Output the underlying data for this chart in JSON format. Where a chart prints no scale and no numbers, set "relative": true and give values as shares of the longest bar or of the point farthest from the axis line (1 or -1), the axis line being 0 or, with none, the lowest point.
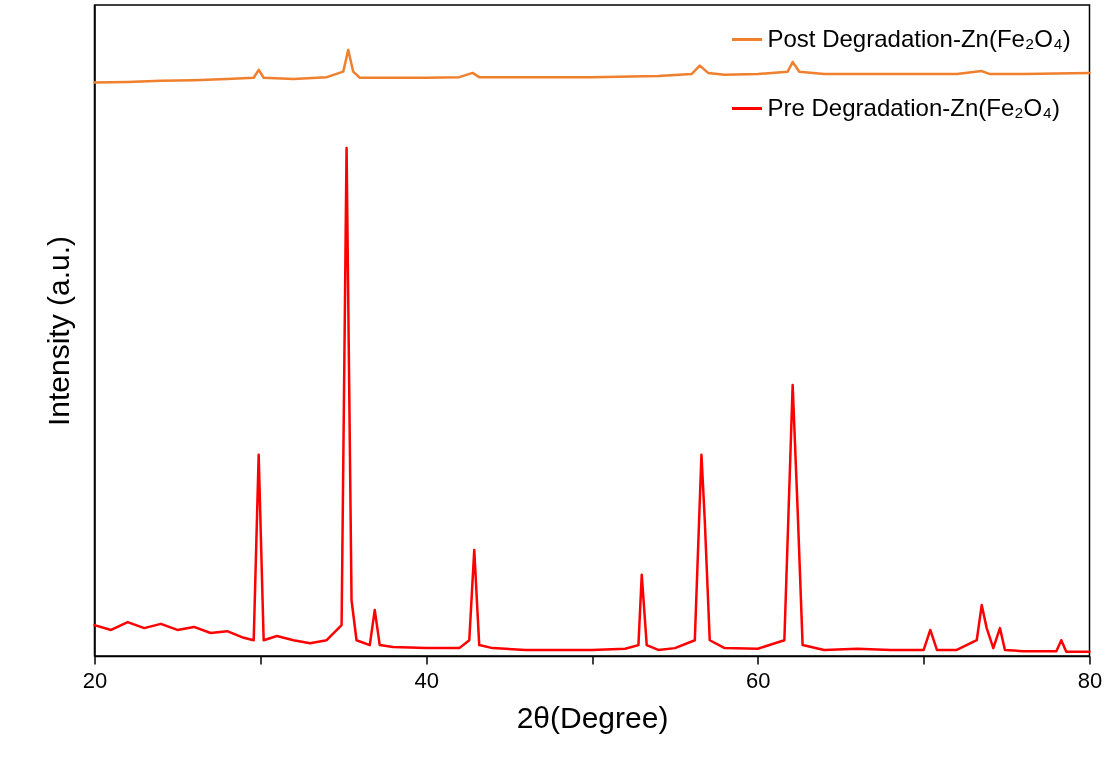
{
  "chart_data": {
    "type": "line",
    "relative": true,
    "xlabel": "2θ(Degree)",
    "ylabel": "Intensity (a.u.)",
    "xlim": [
      20,
      80
    ],
    "xticks": [
      20,
      {
        "value": 30,
        "label": null
      },
      40,
      {
        "value": 50,
        "label": null
      },
      60,
      {
        "value": 70,
        "label": null
      },
      80
    ],
    "legend": "top right",
    "grid": false,
    "marker": "none",
    "line_style": "solid",
    "series": [
      {
        "name": "Post Degradation-Zn(Fe₂O₄)",
        "color": "#f07f2e",
        "x": [
          20,
          22,
          24,
          26,
          28,
          29.6,
          29.9,
          30.2,
          32,
          34,
          35,
          35.3,
          35.6,
          36,
          38,
          40,
          42,
          42.8,
          43.2,
          46,
          50,
          54,
          56,
          56.5,
          57,
          58,
          60,
          61.8,
          62.1,
          62.5,
          64,
          68,
          72,
          73.5,
          74,
          76,
          80
        ],
        "values": [
          0.946,
          0.947,
          0.949,
          0.95,
          0.952,
          0.954,
          0.967,
          0.954,
          0.952,
          0.955,
          0.964,
          1,
          0.964,
          0.954,
          0.954,
          0.954,
          0.955,
          0.962,
          0.955,
          0.955,
          0.955,
          0.957,
          0.96,
          0.974,
          0.962,
          0.959,
          0.96,
          0.964,
          0.98,
          0.964,
          0.96,
          0.96,
          0.96,
          0.965,
          0.96,
          0.96,
          0.962
        ]
      },
      {
        "name": "Pre Degradation-Zn(Fe₂O₄)",
        "color": "#ff0000",
        "x": [
          20,
          21,
          22,
          23,
          24,
          25,
          26,
          27,
          28,
          29,
          29.6,
          29.9,
          30.2,
          31,
          32,
          33,
          34,
          34.9,
          35.2,
          35.5,
          35.8,
          36.6,
          36.9,
          37.2,
          38,
          40,
          42,
          42.6,
          42.9,
          43.2,
          44,
          46,
          48,
          50,
          52,
          52.8,
          53.0,
          53.3,
          54,
          55,
          56.2,
          56.6,
          56.8,
          57.1,
          58,
          60,
          61.6,
          62.1,
          62.4,
          62.7,
          64,
          66,
          68,
          70,
          70.4,
          70.8,
          72,
          73.2,
          73.5,
          73.8,
          74.2,
          74.6,
          74.9,
          76,
          78,
          78.3,
          78.6,
          80
        ],
        "values": [
          0.051,
          0.043,
          0.056,
          0.046,
          0.053,
          0.043,
          0.048,
          0.038,
          0.041,
          0.03,
          0.026,
          0.332,
          0.026,
          0.033,
          0.026,
          0.021,
          0.026,
          0.051,
          0.838,
          0.092,
          0.026,
          0.018,
          0.076,
          0.018,
          0.015,
          0.013,
          0.013,
          0.026,
          0.175,
          0.018,
          0.013,
          0.01,
          0.01,
          0.01,
          0.012,
          0.018,
          0.134,
          0.018,
          0.01,
          0.013,
          0.026,
          0.332,
          0.224,
          0.026,
          0.013,
          0.012,
          0.026,
          0.447,
          0.241,
          0.018,
          0.01,
          0.012,
          0.01,
          0.01,
          0.043,
          0.01,
          0.01,
          0.026,
          0.084,
          0.046,
          0.013,
          0.046,
          0.01,
          0.008,
          0.008,
          0.026,
          0.007,
          0.007
        ]
      }
    ]
  }
}
